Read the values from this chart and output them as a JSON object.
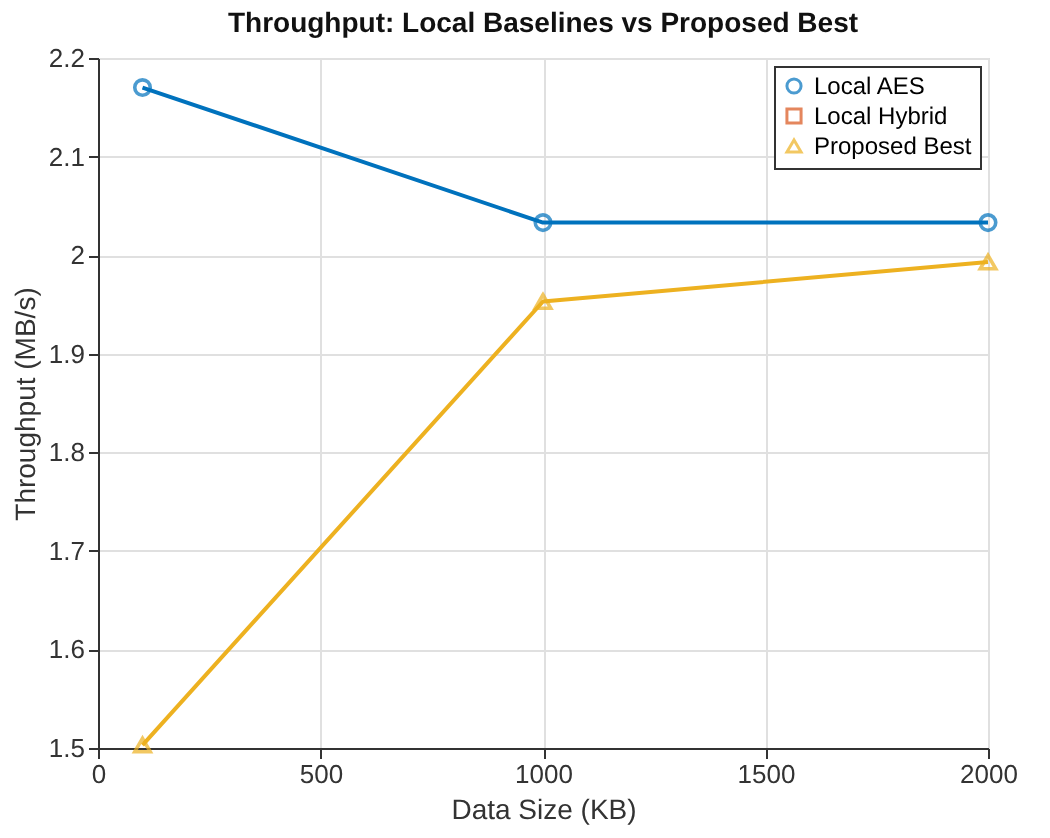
{
  "chart_data": {
    "type": "line",
    "title": "Throughput: Local Baselines vs Proposed Best",
    "xlabel": "Data Size (KB)",
    "ylabel": "Throughput (MB/s)",
    "x": [
      100,
      1000,
      2000
    ],
    "series": [
      {
        "name": "Local AES",
        "color": "#0072bd",
        "marker": "circle",
        "values": [
          2.17,
          2.033,
          2.033
        ]
      },
      {
        "name": "Local Hybrid",
        "color": "#d95319",
        "marker": "square",
        "values": [
          null,
          null,
          null
        ]
      },
      {
        "name": "Proposed Best",
        "color": "#edb120",
        "marker": "triangle",
        "values": [
          1.503,
          1.953,
          1.993
        ]
      }
    ],
    "xlim": [
      0,
      2000
    ],
    "xticks": [
      0,
      500,
      1000,
      1500,
      2000
    ],
    "ylim": [
      1.5,
      2.2
    ],
    "yticks": [
      1.5,
      1.6,
      1.7,
      1.8,
      1.9,
      2,
      2.1,
      2.2
    ],
    "grid": true,
    "legend": "top right",
    "line_style": "solid"
  }
}
